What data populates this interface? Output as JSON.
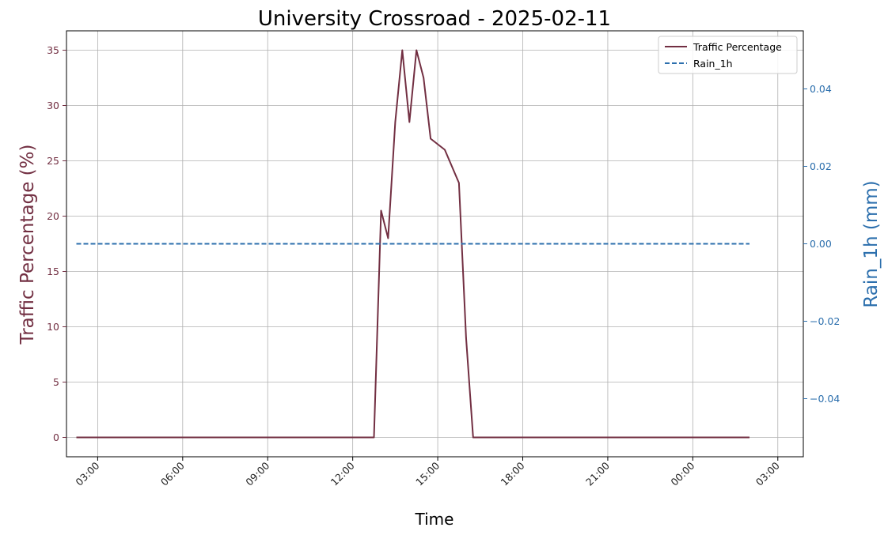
{
  "chart_data": {
    "type": "line",
    "title": "University Crossroad - 2025-02-11",
    "xlabel": "Time",
    "ylabel_left": "Traffic Percentage (%)",
    "ylabel_right": "Rain_1h (mm)",
    "x_tick_labels": [
      "03:00",
      "06:00",
      "09:00",
      "12:00",
      "15:00",
      "18:00",
      "21:00",
      "00:00",
      "03:00"
    ],
    "x_tick_hours": [
      3,
      6,
      9,
      12,
      15,
      18,
      21,
      24,
      27
    ],
    "xlim_hours": [
      1.9,
      27.9
    ],
    "left_ticks": [
      0,
      5,
      10,
      15,
      20,
      25,
      30,
      35
    ],
    "ylim_left": [
      -1.75,
      36.75
    ],
    "right_ticks": [
      0.04,
      0.02,
      0.0,
      -0.02,
      -0.04
    ],
    "right_tick_labels": [
      "0.04",
      "0.02",
      "0.00",
      "−0.02",
      "−0.04"
    ],
    "ylim_right": [
      -0.055,
      0.055
    ],
    "grid": true,
    "legend_position": "top-right",
    "series": [
      {
        "name": "Traffic Percentage",
        "axis": "left",
        "color": "#722f42",
        "style": "solid",
        "x_hours": [
          2.25,
          12.75,
          13.0,
          13.25,
          13.5,
          13.75,
          14.0,
          14.25,
          14.5,
          14.75,
          15.25,
          15.75,
          16.0,
          16.25,
          26.0
        ],
        "values": [
          0,
          0,
          20.5,
          18,
          28.5,
          35,
          28.5,
          35,
          32.5,
          27,
          26,
          23,
          9,
          0,
          0
        ]
      },
      {
        "name": "Rain_1h",
        "axis": "right",
        "color": "#2c6fad",
        "style": "dashed",
        "x_hours": [
          2.25,
          26.0
        ],
        "values": [
          0.0,
          0.0
        ]
      }
    ]
  }
}
